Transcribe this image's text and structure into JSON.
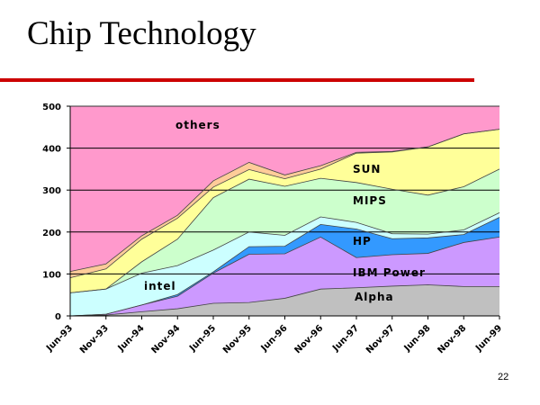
{
  "slide": {
    "title": "Chip Technology",
    "page_number": "22",
    "accent_color": "#cc0000"
  },
  "chart_data": {
    "type": "area",
    "stacked": true,
    "title": "",
    "xlabel": "",
    "ylabel": "",
    "ylim": [
      0,
      500
    ],
    "yticks": [
      0,
      100,
      200,
      300,
      400,
      500
    ],
    "grid": true,
    "legend": "none",
    "categories": [
      "Jun-93",
      "Nov-93",
      "Jun-94",
      "Nov-94",
      "Jun-95",
      "Nov-95",
      "Jun-96",
      "Nov-96",
      "Jun-97",
      "Nov-97",
      "Jun-98",
      "Nov-98",
      "Jun-99"
    ],
    "series": [
      {
        "name": "Alpha",
        "color": "#c0c0c0",
        "values": [
          0,
          2,
          10,
          17,
          30,
          32,
          42,
          64,
          67,
          71,
          74,
          70,
          70
        ]
      },
      {
        "name": "IBM Power",
        "color": "#cc99ff",
        "values": [
          0,
          2,
          16,
          30,
          72,
          115,
          106,
          124,
          72,
          75,
          75,
          105,
          118
        ]
      },
      {
        "name": "HP",
        "color": "#3399ff",
        "values": [
          0,
          0,
          0,
          4,
          3,
          18,
          18,
          30,
          68,
          38,
          37,
          19,
          47
        ]
      },
      {
        "name": "intel",
        "color": "#ccffff",
        "values": [
          55,
          60,
          76,
          69,
          52,
          35,
          26,
          18,
          16,
          12,
          9,
          11,
          11
        ]
      },
      {
        "name": "MIPS",
        "color": "#ccffcc",
        "values": [
          0,
          0,
          27,
          63,
          125,
          126,
          117,
          92,
          95,
          106,
          93,
          103,
          104
        ]
      },
      {
        "name": "SUN",
        "color": "#ffff99",
        "values": [
          36,
          48,
          54,
          50,
          25,
          23,
          18,
          22,
          70,
          89,
          115,
          126,
          95
        ]
      },
      {
        "name": "",
        "color": "#ffcc99",
        "values": [
          15,
          12,
          8,
          7,
          15,
          17,
          9,
          8,
          2,
          1,
          0,
          0,
          0
        ]
      },
      {
        "name": "others",
        "color": "#ff99cc",
        "values": [
          394,
          376,
          309,
          260,
          178,
          134,
          164,
          142,
          110,
          108,
          97,
          66,
          55
        ]
      }
    ],
    "annotations": [
      {
        "text": "others",
        "series": "others"
      },
      {
        "text": "SUN",
        "series": "SUN"
      },
      {
        "text": "MIPS",
        "series": "MIPS"
      },
      {
        "text": "HP",
        "series": "HP"
      },
      {
        "text": "intel",
        "series": "intel"
      },
      {
        "text": "IBM Power",
        "series": "IBM Power"
      },
      {
        "text": "Alpha",
        "series": "Alpha"
      }
    ]
  }
}
